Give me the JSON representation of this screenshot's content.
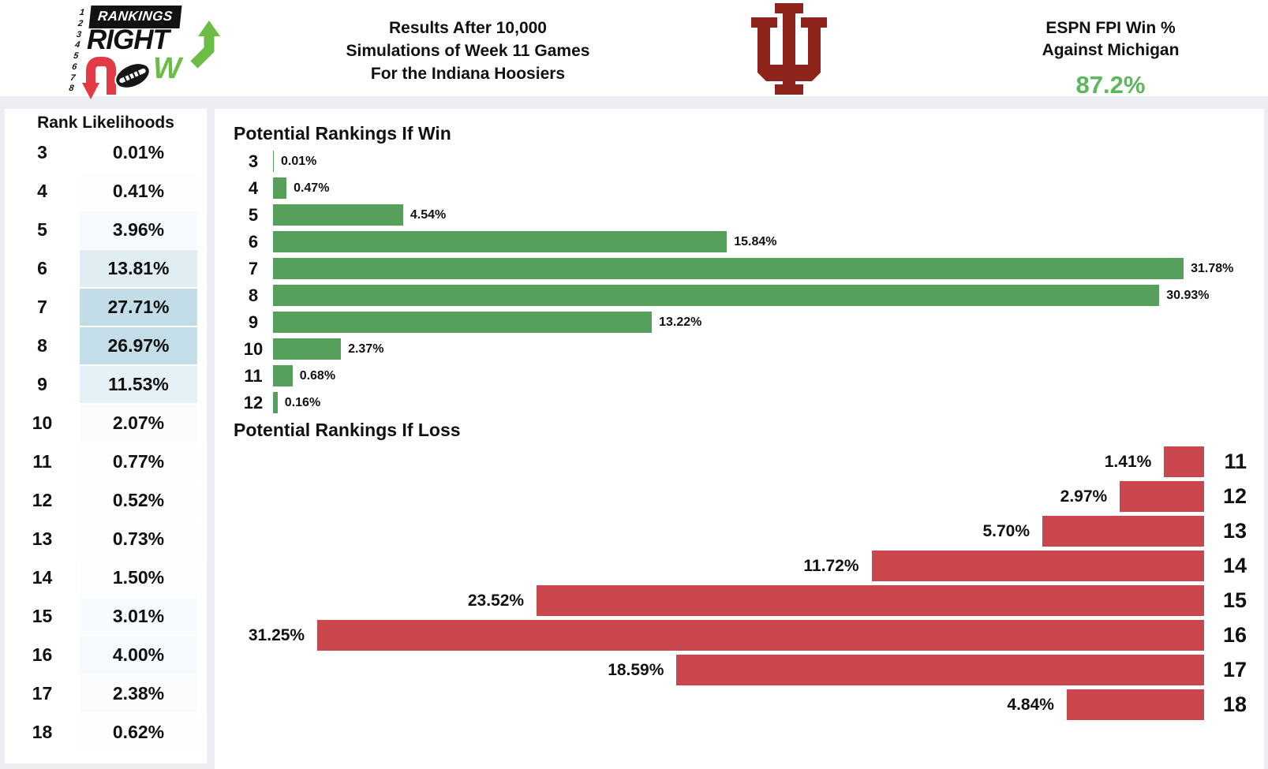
{
  "colors": {
    "page_bg": "#eceef2",
    "panel_bg": "#ffffff",
    "win_bar_green": "#57a05c",
    "loss_bar_red": "#c9474d",
    "fpi_green": "#5db75e",
    "iu_crimson": "#8e231c",
    "table_highlight_blue": "#c1dde8",
    "logo_green": "#6cbd45",
    "logo_red": "#e23b46"
  },
  "header": {
    "logo": {
      "numbers": [
        "1",
        "2",
        "3",
        "4",
        "5",
        "6",
        "7",
        "8"
      ],
      "word1": "RANKINGS",
      "word2": "RIGHT",
      "word3_w": "W"
    },
    "title_lines": [
      "Results After 10,000",
      "Simulations of Week 11 Games",
      "For the Indiana Hoosiers"
    ],
    "fpi": {
      "line1": "ESPN FPI Win %",
      "line2": "Against Michigan",
      "value": "87.2%"
    }
  },
  "chart_data": [
    {
      "type": "table",
      "title": "Rank Likelihoods",
      "categories": [
        "3",
        "4",
        "5",
        "6",
        "7",
        "8",
        "9",
        "10",
        "11",
        "12",
        "13",
        "14",
        "15",
        "16",
        "17",
        "18"
      ],
      "values": [
        0.01,
        0.41,
        3.96,
        13.81,
        27.71,
        26.97,
        11.53,
        2.07,
        0.77,
        0.52,
        0.73,
        1.5,
        3.01,
        4.0,
        2.38,
        0.62
      ],
      "labels": [
        "0.01%",
        "0.41%",
        "3.96%",
        "13.81%",
        "27.71%",
        "26.97%",
        "11.53%",
        "2.07%",
        "0.77%",
        "0.52%",
        "0.73%",
        "1.50%",
        "3.01%",
        "4.00%",
        "2.38%",
        "0.62%"
      ],
      "note": "likelihood cell background blue intensity scales with value"
    },
    {
      "type": "bar",
      "orientation": "horizontal-left-anchored",
      "title": "Potential Rankings If Win",
      "categories": [
        "3",
        "4",
        "5",
        "6",
        "7",
        "8",
        "9",
        "10",
        "11",
        "12"
      ],
      "values": [
        0.01,
        0.47,
        4.54,
        15.84,
        31.78,
        30.93,
        13.22,
        2.37,
        0.68,
        0.16
      ],
      "labels": [
        "0.01%",
        "0.47%",
        "4.54%",
        "15.84%",
        "31.78%",
        "30.93%",
        "13.22%",
        "2.37%",
        "0.68%",
        "0.16%"
      ],
      "bar_color": "#57a05c",
      "value_label_position": "right-of-bar",
      "xlim": [
        0,
        34.2
      ],
      "grid": false,
      "legend": false
    },
    {
      "type": "bar",
      "orientation": "horizontal-right-anchored",
      "title": "Potential Rankings If Loss",
      "categories": [
        "11",
        "12",
        "13",
        "14",
        "15",
        "16",
        "17",
        "18"
      ],
      "values": [
        1.41,
        2.97,
        5.7,
        11.72,
        23.52,
        31.25,
        18.59,
        4.84
      ],
      "labels": [
        "1.41%",
        "2.97%",
        "5.70%",
        "11.72%",
        "23.52%",
        "31.25%",
        "18.59%",
        "4.84%"
      ],
      "bar_color": "#c9474d",
      "value_label_position": "left-of-bar",
      "xlim": [
        0,
        34.2
      ],
      "grid": false,
      "legend": false
    }
  ]
}
